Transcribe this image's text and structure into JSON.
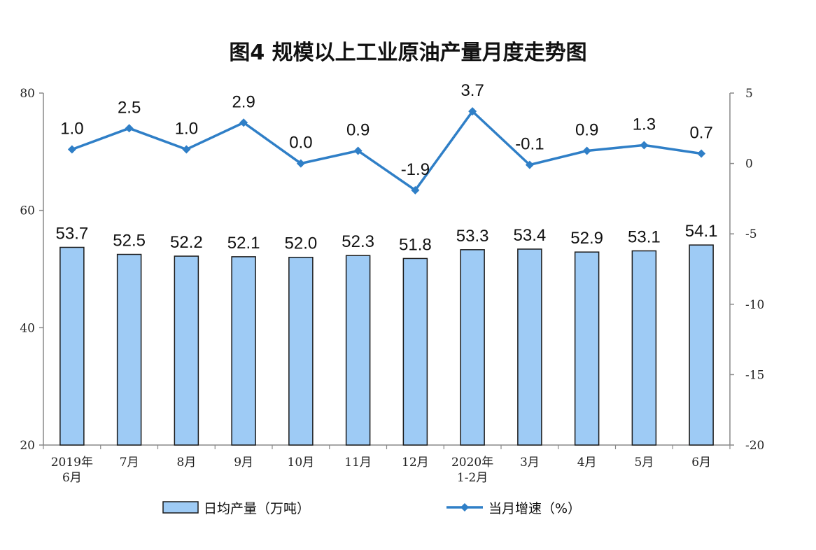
{
  "chart_data": {
    "title": "图4  规模以上工业原油产量月度走势图",
    "categories": [
      [
        "2019年",
        "6月"
      ],
      [
        "7月"
      ],
      [
        "8月"
      ],
      [
        "9月"
      ],
      [
        "10月"
      ],
      [
        "11月"
      ],
      [
        "12月"
      ],
      [
        "2020年",
        "1-2月"
      ],
      [
        "3月"
      ],
      [
        "4月"
      ],
      [
        "5月"
      ],
      [
        "6月"
      ]
    ],
    "series": [
      {
        "name": "日均产量（万吨）",
        "type": "bar",
        "axis": "left",
        "color": "#9ECBF5",
        "values": [
          53.7,
          52.5,
          52.2,
          52.1,
          52.0,
          52.3,
          51.8,
          53.3,
          53.4,
          52.9,
          53.1,
          54.1
        ]
      },
      {
        "name": "当月增速（%）",
        "type": "line",
        "axis": "right",
        "color": "#2F7FC7",
        "values": [
          1.0,
          2.5,
          1.0,
          2.9,
          0.0,
          0.9,
          -1.9,
          3.7,
          -0.1,
          0.9,
          1.3,
          0.7
        ]
      }
    ],
    "left_axis": {
      "min": 20,
      "max": 80,
      "ticks": [
        20,
        40,
        60,
        80
      ]
    },
    "right_axis": {
      "min": -20,
      "max": 5,
      "ticks": [
        -20,
        -15,
        -10,
        -5,
        0,
        5
      ]
    },
    "legend_position": "bottom"
  }
}
